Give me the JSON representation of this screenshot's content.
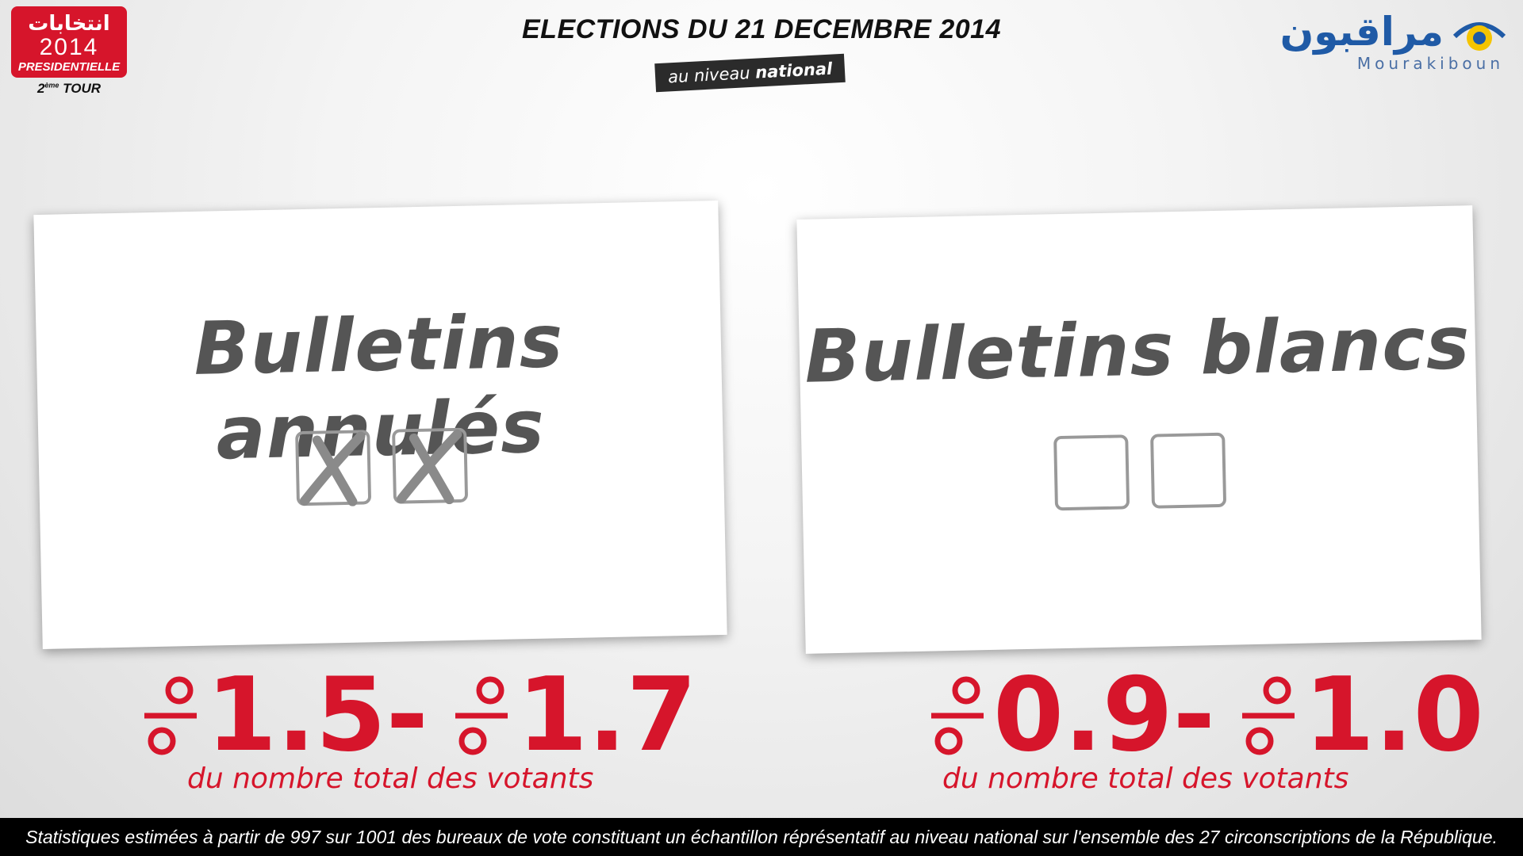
{
  "badge": {
    "arabic": "انتخابات",
    "year": "2014",
    "type": "PRESIDENTIELLE",
    "round_num": "2",
    "round_sup": "ème",
    "round_word": "TOUR"
  },
  "header": {
    "title": "ELECTIONS DU 21 DECEMBRE 2014",
    "subtitle_prefix": "au niveau",
    "subtitle_bold": "national"
  },
  "logo": {
    "arabic": "مراقبون",
    "latin": "Mourakiboun"
  },
  "cards": [
    {
      "title": "Bulletins annulés",
      "range_low": "1.5",
      "separator": "-",
      "range_high": "1.7",
      "note": "du nombre total des votants"
    },
    {
      "title": "Bulletins blancs",
      "range_low": "0.9",
      "separator": "-",
      "range_high": "1.0",
      "note": "du nombre total des votants"
    }
  ],
  "footer": {
    "text": "Statistiques estimées à partir de 997 sur 1001 des bureaux de vote constituant un échantillon réprésentatif au niveau national sur l'ensemble des 27 circonscriptions de la République."
  },
  "colors": {
    "accent_red": "#d6152b",
    "logo_blue": "#1f5aa6",
    "logo_yellow": "#f5c400",
    "card_text": "#555555"
  }
}
